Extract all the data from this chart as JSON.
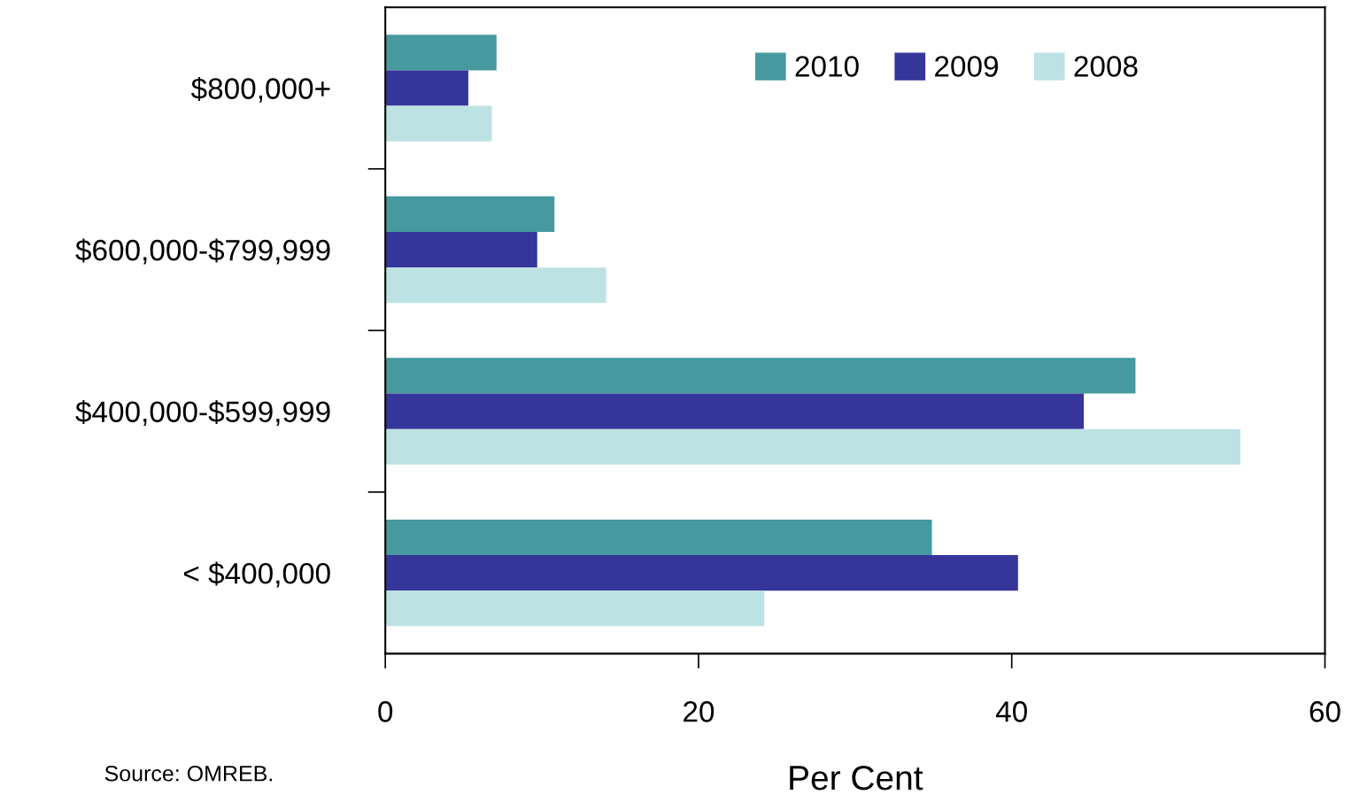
{
  "chart_data": {
    "type": "bar",
    "orientation": "horizontal",
    "xlabel": "Per Cent",
    "categories": [
      "$800,000+",
      "$600,000-$799,999",
      "$400,000-$599,999",
      "< $400,000"
    ],
    "series": [
      {
        "name": "2010",
        "color": "#45999f",
        "values": [
          7.1,
          10.8,
          47.9,
          34.9
        ]
      },
      {
        "name": "2009",
        "color": "#35359a",
        "values": [
          5.3,
          9.7,
          44.6,
          40.4
        ]
      },
      {
        "name": "2008",
        "color": "#bde2e3",
        "values": [
          6.8,
          14.1,
          54.6,
          24.2
        ]
      }
    ],
    "xlim": [
      0,
      60
    ],
    "xticks": [
      0,
      20,
      40,
      60
    ],
    "grid": false,
    "legend": "top right",
    "annotations": [
      "Source: OMREB."
    ]
  }
}
